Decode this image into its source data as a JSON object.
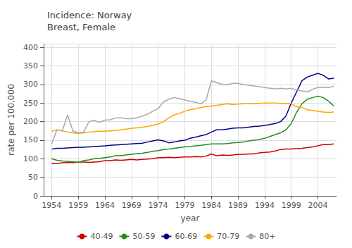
{
  "chart_data": {
    "type": "line",
    "title": "Incidence: Norway\nBreast, Female",
    "xlabel": "year",
    "ylabel": "rate per 100,000",
    "xlim": [
      1952.5,
      2007.5
    ],
    "ylim": [
      0,
      410
    ],
    "xticks": [
      1954,
      1959,
      1964,
      1969,
      1974,
      1979,
      1984,
      1989,
      1994,
      1999,
      2004
    ],
    "yticks": [
      0,
      50,
      100,
      150,
      200,
      250,
      300,
      350,
      400
    ],
    "grid": true,
    "legend": "bottom",
    "x": [
      1954,
      1955,
      1956,
      1957,
      1958,
      1959,
      1960,
      1961,
      1962,
      1963,
      1964,
      1965,
      1966,
      1967,
      1968,
      1969,
      1970,
      1971,
      1972,
      1973,
      1974,
      1975,
      1976,
      1977,
      1978,
      1979,
      1980,
      1981,
      1982,
      1983,
      1984,
      1985,
      1986,
      1987,
      1988,
      1989,
      1990,
      1991,
      1992,
      1993,
      1994,
      1995,
      1996,
      1997,
      1998,
      1999,
      2000,
      2001,
      2002,
      2003,
      2004,
      2005,
      2006,
      2007
    ],
    "series": [
      {
        "name": "40-49",
        "color": "#cc0000",
        "values": [
          87,
          87,
          89,
          90,
          89,
          91,
          91,
          90,
          91,
          92,
          95,
          95,
          97,
          96,
          97,
          98,
          97,
          98,
          99,
          100,
          103,
          103,
          104,
          103,
          104,
          105,
          105,
          106,
          105,
          107,
          113,
          108,
          110,
          109,
          110,
          112,
          112,
          113,
          113,
          116,
          117,
          118,
          121,
          125,
          126,
          126,
          127,
          128,
          130,
          132,
          135,
          138,
          138,
          140
        ]
      },
      {
        "name": "50-59",
        "color": "#228B22",
        "values": [
          100,
          96,
          94,
          93,
          92,
          90,
          95,
          97,
          100,
          101,
          103,
          105,
          108,
          108,
          110,
          112,
          114,
          115,
          117,
          120,
          122,
          125,
          126,
          128,
          130,
          132,
          133,
          135,
          136,
          138,
          140,
          140,
          140,
          141,
          143,
          144,
          145,
          148,
          150,
          152,
          155,
          160,
          165,
          170,
          178,
          195,
          225,
          248,
          260,
          265,
          268,
          265,
          255,
          242
        ]
      },
      {
        "name": "60-69",
        "color": "#00008B",
        "values": [
          126,
          128,
          128,
          129,
          130,
          131,
          131,
          132,
          133,
          134,
          135,
          136,
          137,
          138,
          139,
          140,
          141,
          142,
          145,
          148,
          151,
          148,
          143,
          145,
          148,
          150,
          155,
          158,
          162,
          165,
          172,
          178,
          178,
          180,
          182,
          183,
          183,
          185,
          187,
          188,
          190,
          192,
          195,
          200,
          215,
          250,
          280,
          310,
          320,
          325,
          330,
          325,
          315,
          317
        ]
      },
      {
        "name": "70-79",
        "color": "#FFA500",
        "values": [
          174,
          178,
          175,
          172,
          170,
          168,
          170,
          172,
          173,
          174,
          174,
          175,
          176,
          178,
          180,
          182,
          183,
          185,
          187,
          190,
          193,
          200,
          210,
          218,
          222,
          228,
          232,
          235,
          238,
          240,
          242,
          244,
          246,
          248,
          246,
          247,
          248,
          248,
          248,
          249,
          250,
          250,
          250,
          249,
          248,
          248,
          240,
          238,
          232,
          230,
          228,
          226,
          225,
          226
        ]
      },
      {
        "name": "80+",
        "color": "#A9A9A9",
        "values": [
          140,
          178,
          175,
          218,
          175,
          170,
          172,
          200,
          203,
          198,
          204,
          205,
          210,
          210,
          208,
          208,
          210,
          215,
          220,
          228,
          235,
          253,
          260,
          265,
          262,
          258,
          255,
          252,
          248,
          258,
          310,
          305,
          300,
          300,
          303,
          303,
          300,
          298,
          296,
          294,
          292,
          290,
          288,
          290,
          288,
          290,
          285,
          283,
          280,
          287,
          292,
          293,
          292,
          295
        ]
      }
    ]
  }
}
